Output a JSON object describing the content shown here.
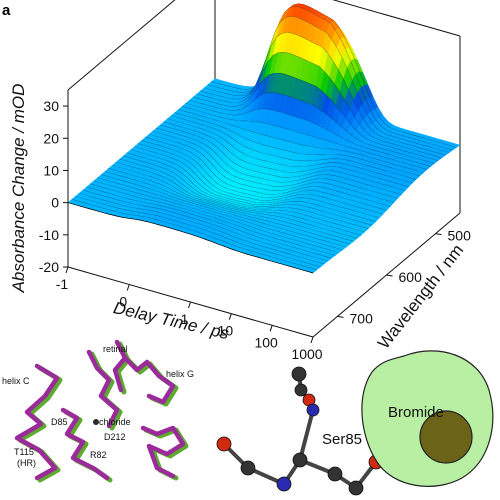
{
  "panel_label": "a",
  "chart_data": {
    "type": "surface",
    "zlabel": "Absorbance Change / mOD",
    "xlabel": "Delay Time / ps",
    "ylabel": "Wavelength / nm",
    "z_ticks": [
      "30",
      "20",
      "10",
      "0",
      "-10",
      "-20"
    ],
    "x_ticks": [
      "-1",
      "0",
      "1",
      "10",
      "100",
      "1000"
    ],
    "y_ticks": [
      "500",
      "600",
      "700"
    ],
    "zlim": [
      -20,
      35
    ],
    "xlim": [
      -1,
      1000
    ],
    "ylim": [
      450,
      750
    ],
    "peak_signal_mOD": 37,
    "min_signal_mOD": -9,
    "colormap": [
      "#00ffff",
      "#0080ff",
      "#00c000",
      "#ffff00",
      "#ff8000",
      "#ff0000"
    ]
  },
  "structure_panel": {
    "labels": {
      "retinal": "retinal",
      "helix_c": "helix C",
      "helix_g": "helix G",
      "d85": "D85",
      "chloride": "chloride",
      "d212": "D212",
      "t115": "T115",
      "hr": "(HR)",
      "r82": "R82"
    },
    "colors": {
      "purple": "#9b2a9b",
      "green": "#5caa2e"
    }
  },
  "ser_panel": {
    "label": "Ser85"
  },
  "bromide_panel": {
    "label": "Bromide",
    "fill": "#b9efa3",
    "core": "#6b6418"
  }
}
